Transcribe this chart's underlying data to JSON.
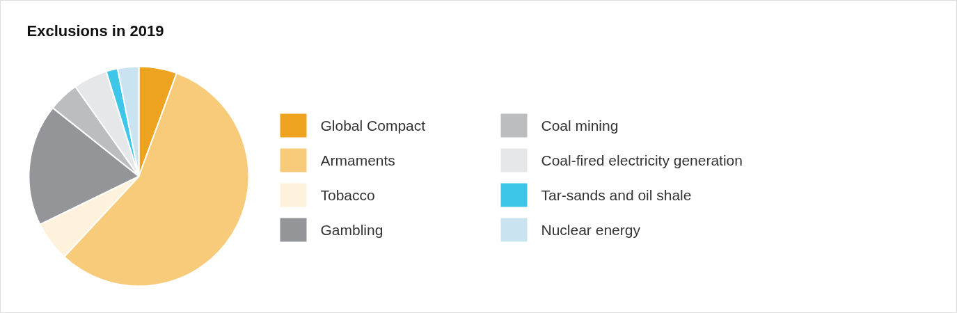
{
  "chart_data": {
    "type": "pie",
    "title": "Exclusions in 2019",
    "categories": [
      "Global Compact",
      "Armaments",
      "Tobacco",
      "Gambling",
      "Coal mining",
      "Coal-fired electricity generation",
      "Tar-sands and oil shale",
      "Nuclear energy"
    ],
    "values": [
      5.6,
      56.3,
      5.9,
      17.9,
      4.5,
      5.0,
      1.7,
      3.1
    ],
    "colors": [
      "#eea320",
      "#f8cb7b",
      "#fef2dc",
      "#939598",
      "#bcbdbf",
      "#e6e7e8",
      "#3ec6e8",
      "#c9e3f0"
    ],
    "legend": "right"
  }
}
